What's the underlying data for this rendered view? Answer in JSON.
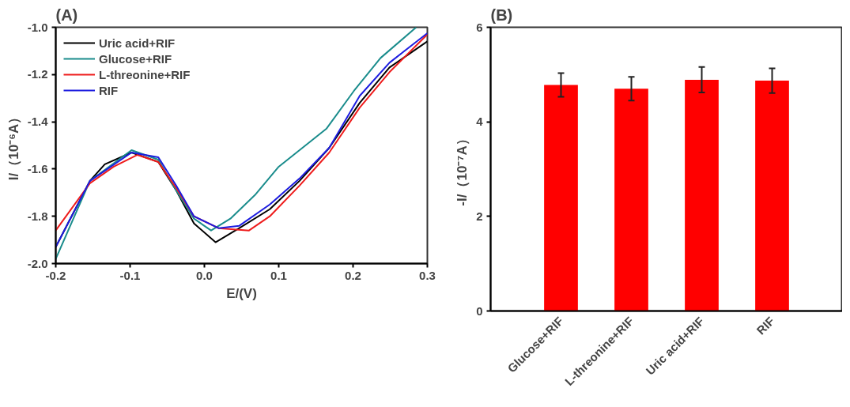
{
  "chart_data": [
    {
      "type": "line",
      "title": "(A)",
      "xlabel": "E/(V)",
      "ylabel": "I/（10⁻⁶A）",
      "xlim": [
        -0.2,
        0.3
      ],
      "ylim": [
        -2.0,
        -1.0
      ],
      "xticks": [
        -0.2,
        -0.1,
        {
          "value": 0,
          "label": "0.0"
        },
        0.1,
        0.2,
        0.3
      ],
      "yticks": [
        {
          "value": -2,
          "label": "-2.0"
        },
        -1.8,
        -1.6,
        -1.4,
        -1.2,
        {
          "value": -1,
          "label": "-1.0"
        }
      ],
      "grid": false,
      "legend": "top left",
      "marker": "none",
      "line_style": "solid",
      "series": [
        {
          "name": "Uric acid+RIF",
          "color": "#000000",
          "x": [
            -0.2,
            -0.154,
            -0.134,
            -0.098,
            -0.062,
            -0.038,
            -0.014,
            0.015,
            0.047,
            0.088,
            0.128,
            0.168,
            0.209,
            0.249,
            0.3
          ],
          "values": [
            -1.93,
            -1.65,
            -1.58,
            -1.53,
            -1.57,
            -1.69,
            -1.83,
            -1.91,
            -1.85,
            -1.77,
            -1.65,
            -1.51,
            -1.32,
            -1.17,
            -1.06
          ]
        },
        {
          "name": "Glucose+RIF",
          "color": "#1a8c8c",
          "x": [
            -0.2,
            -0.154,
            -0.098,
            -0.062,
            -0.038,
            -0.014,
            0.009,
            0.035,
            0.068,
            0.1,
            0.14,
            0.164,
            0.201,
            0.237,
            0.285
          ],
          "values": [
            -1.98,
            -1.65,
            -1.52,
            -1.56,
            -1.69,
            -1.81,
            -1.86,
            -1.81,
            -1.71,
            -1.59,
            -1.49,
            -1.43,
            -1.27,
            -1.13,
            -1.0
          ]
        },
        {
          "name": "L-threonine+RIF",
          "color": "#ee1c1c",
          "x": [
            -0.2,
            -0.154,
            -0.122,
            -0.09,
            -0.062,
            -0.038,
            -0.014,
            0.019,
            0.06,
            0.088,
            0.128,
            0.168,
            0.209,
            0.249,
            0.3
          ],
          "values": [
            -1.86,
            -1.66,
            -1.59,
            -1.54,
            -1.57,
            -1.68,
            -1.8,
            -1.85,
            -1.86,
            -1.8,
            -1.67,
            -1.53,
            -1.34,
            -1.19,
            -1.03
          ]
        },
        {
          "name": "RIF",
          "color": "#1c1ce0",
          "x": [
            -0.2,
            -0.154,
            -0.098,
            -0.062,
            -0.038,
            -0.014,
            0.019,
            0.047,
            0.088,
            0.128,
            0.168,
            0.209,
            0.249,
            0.3
          ],
          "values": [
            -1.93,
            -1.65,
            -1.53,
            -1.55,
            -1.67,
            -1.8,
            -1.85,
            -1.84,
            -1.75,
            -1.64,
            -1.51,
            -1.29,
            -1.15,
            -1.025
          ]
        }
      ]
    },
    {
      "type": "bar",
      "title": "(B)",
      "ylabel": "-I/（10⁻⁷A）",
      "categories": [
        "Glucose+RIF",
        "L-threonine+RIF",
        "Uric acid+RIF",
        "RIF"
      ],
      "values": [
        4.78,
        4.7,
        4.89,
        4.87
      ],
      "errors": [
        0.25,
        0.25,
        0.27,
        0.26
      ],
      "color": "#ff0000",
      "ylim": [
        0,
        6
      ],
      "yticks": [
        0,
        2,
        4,
        6
      ],
      "grid": false
    }
  ]
}
